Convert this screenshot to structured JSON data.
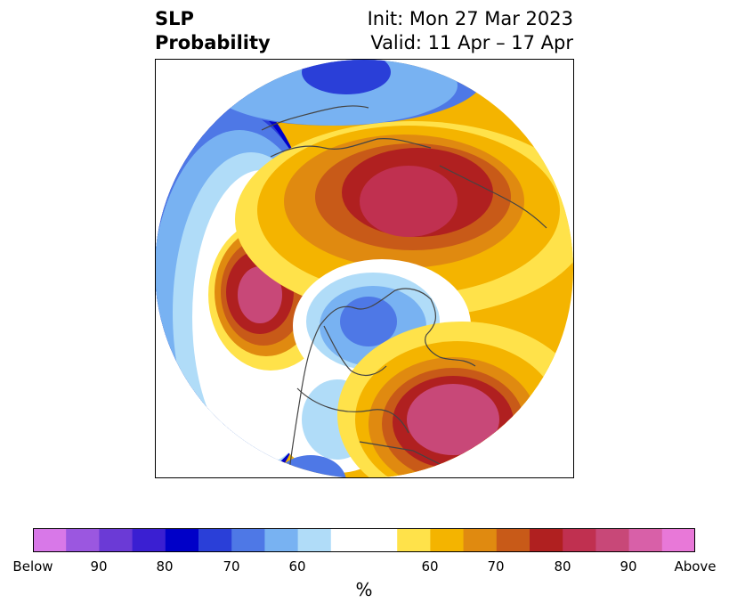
{
  "title": {
    "left_line1": "SLP",
    "left_line2": "Probability",
    "right_line1": "Init: Mon 27 Mar 2023",
    "right_line2": "Valid: 11 Apr – 17 Apr"
  },
  "colorbar": {
    "colors": [
      "#d878e8",
      "#9b57e0",
      "#6b3ad6",
      "#3a1fd2",
      "#0000c8",
      "#2a3fd8",
      "#4e78e6",
      "#78b2f2",
      "#b0dcf8",
      "#ffffff",
      "#ffffff",
      "#ffe24a",
      "#f4b400",
      "#e08a10",
      "#c85a18",
      "#b02020",
      "#c03050",
      "#c84878",
      "#d860a8",
      "#e878d8"
    ],
    "tick_labels": [
      "Below",
      "90",
      "80",
      "70",
      "60",
      "60",
      "70",
      "80",
      "90",
      "Above"
    ],
    "unit": "%"
  }
}
